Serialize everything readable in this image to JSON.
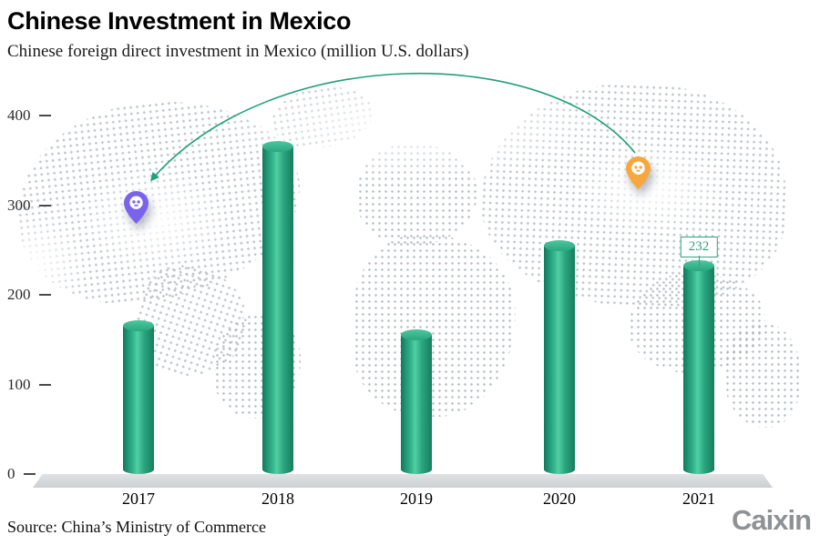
{
  "header": {
    "title": "Chinese Investment in Mexico",
    "subtitle": "Chinese foreign direct investment in Mexico (million U.S. dollars)"
  },
  "footer": {
    "source": "Source: China’s Ministry of Commerce",
    "brand": "Caixin"
  },
  "chart_data": {
    "type": "bar",
    "title": "Chinese Investment in Mexico",
    "subtitle": "Chinese foreign direct investment in Mexico (million U.S. dollars)",
    "categories": [
      "2017",
      "2018",
      "2019",
      "2020",
      "2021"
    ],
    "values": [
      165,
      365,
      155,
      255,
      232
    ],
    "xlabel": "",
    "ylabel": "million U.S. dollars",
    "ylim": [
      0,
      440
    ],
    "yticks": [
      0,
      100,
      200,
      300,
      400
    ],
    "grid": false,
    "legend": "none",
    "bar_color": "#2aa57f",
    "annotations": [
      {
        "category": "2021",
        "label": "232"
      }
    ]
  },
  "map": {
    "style": "dotted world map",
    "dot_color": "#b5bec5",
    "arrow_color": "#1fa07c",
    "pins": [
      {
        "name": "origin-pin",
        "color": "#f6a83c",
        "location": "east-asia"
      },
      {
        "name": "destination-pin",
        "color": "#7a63ea",
        "location": "north-america"
      }
    ]
  }
}
